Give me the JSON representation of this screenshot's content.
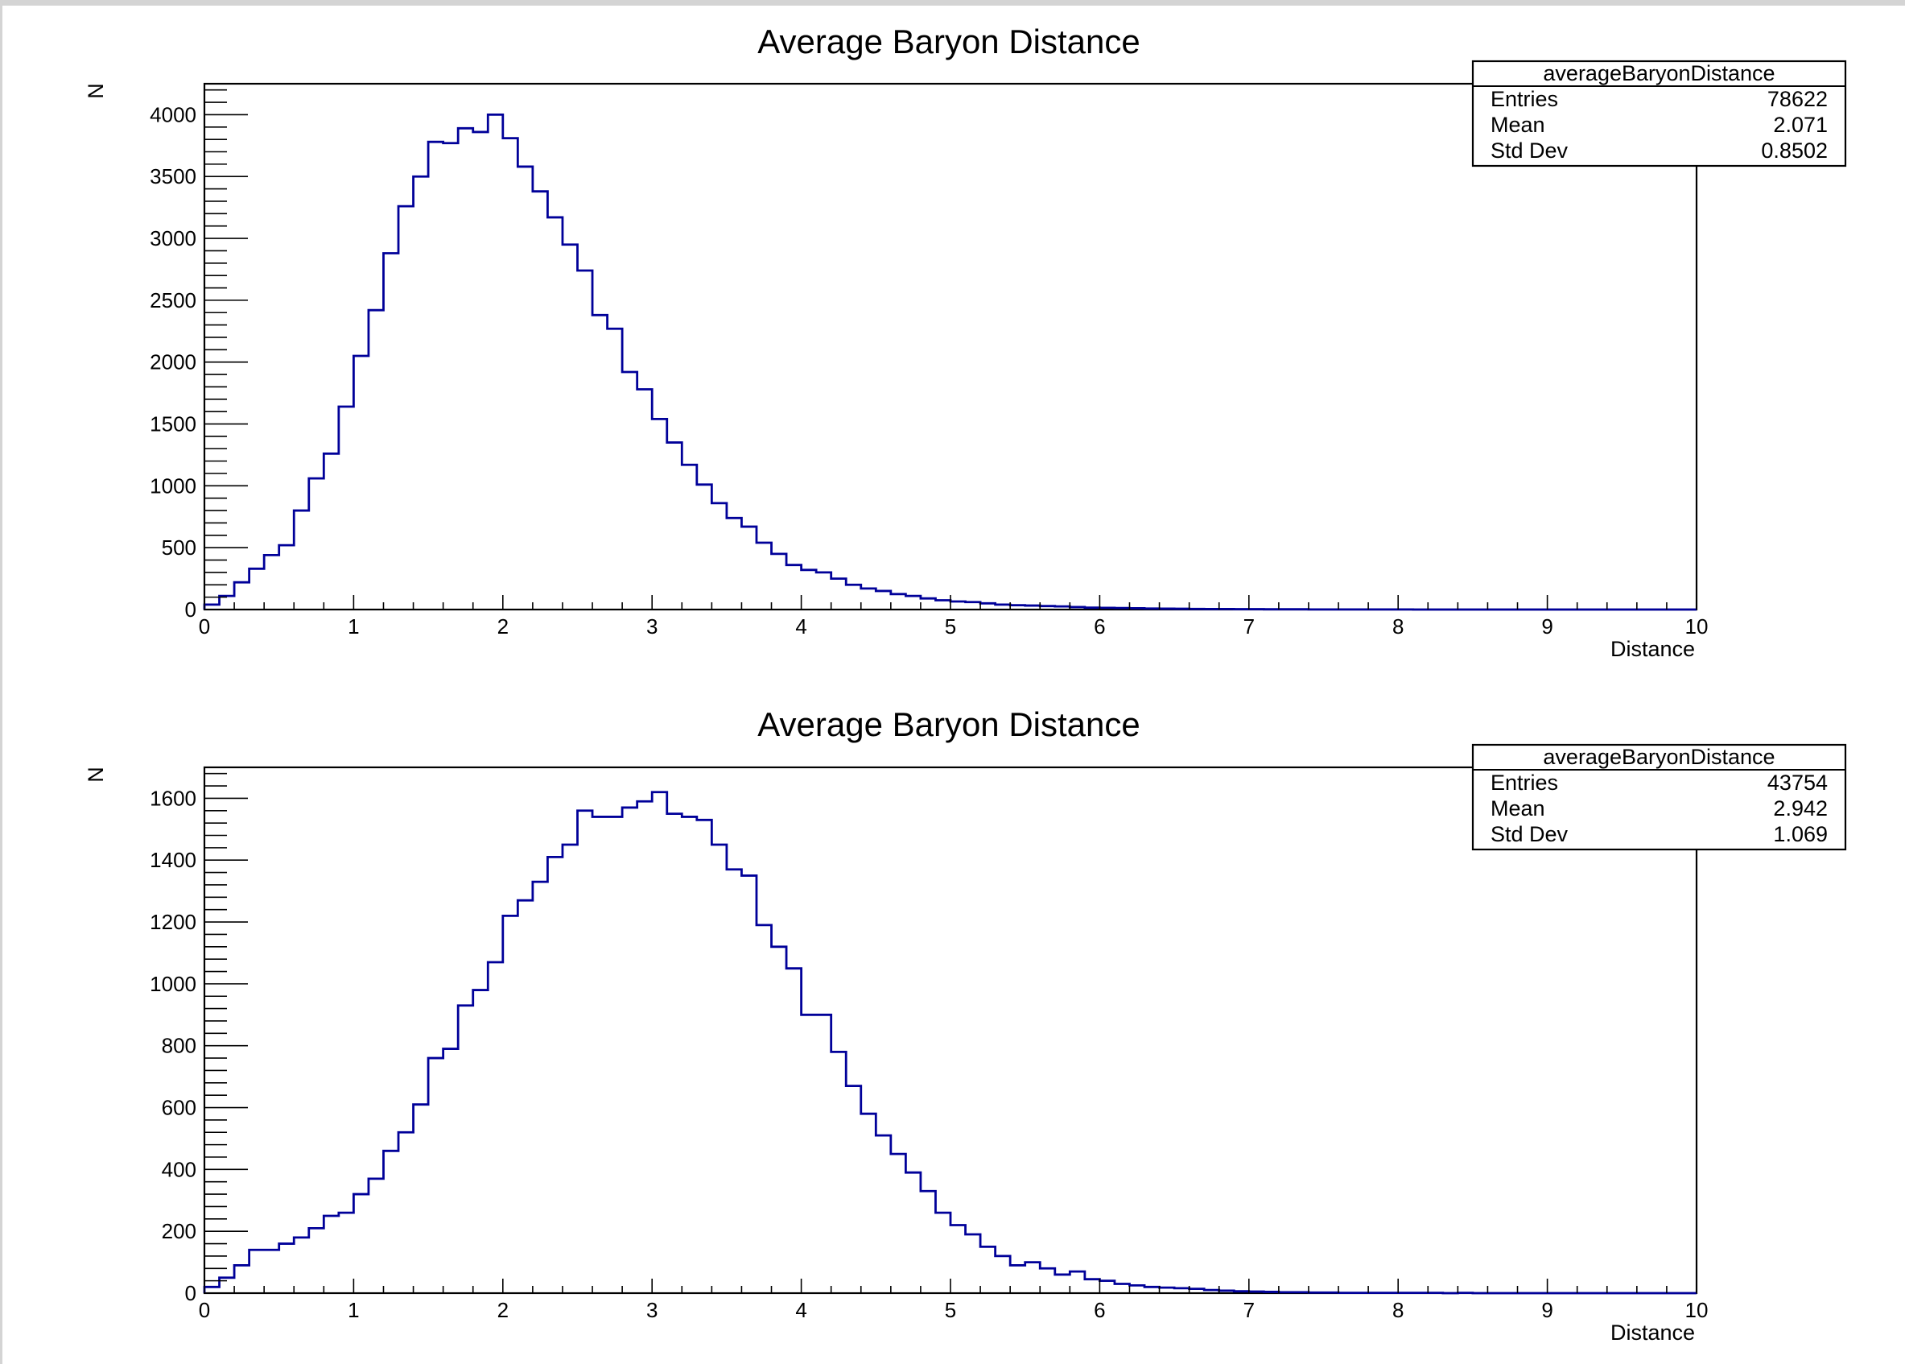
{
  "chart_data": [
    {
      "type": "histogram",
      "title": "Average Baryon Distance",
      "xlabel": "Distance",
      "ylabel": "N",
      "xlim": [
        0,
        10
      ],
      "ylim": [
        0,
        4250
      ],
      "x_ticks": [
        0,
        1,
        2,
        3,
        4,
        5,
        6,
        7,
        8,
        9,
        10
      ],
      "y_ticks": [
        0,
        500,
        1000,
        1500,
        2000,
        2500,
        3000,
        3500,
        4000
      ],
      "color": "#000099",
      "bin_width": 0.1,
      "series": [
        {
          "name": "averageBaryonDistance",
          "values": [
            40,
            110,
            220,
            330,
            440,
            520,
            800,
            1060,
            1260,
            1640,
            2050,
            2420,
            2880,
            3260,
            3500,
            3780,
            3770,
            3890,
            3860,
            4000,
            3810,
            3580,
            3380,
            3170,
            2950,
            2740,
            2380,
            2270,
            1920,
            1780,
            1540,
            1350,
            1170,
            1010,
            860,
            740,
            670,
            540,
            450,
            360,
            320,
            300,
            250,
            200,
            170,
            150,
            125,
            110,
            90,
            75,
            65,
            60,
            50,
            40,
            35,
            32,
            28,
            25,
            20,
            15,
            14,
            12,
            10,
            8,
            7,
            6,
            5,
            4,
            4,
            3,
            3,
            2,
            2,
            2,
            1,
            1,
            1,
            1,
            1,
            1,
            1,
            0,
            0,
            0,
            0,
            0,
            0,
            0,
            0,
            0,
            0,
            0,
            0,
            0,
            0,
            0,
            0,
            0,
            0,
            0
          ]
        }
      ],
      "stats": {
        "name": "averageBaryonDistance",
        "rows": [
          {
            "label": "Entries",
            "value": "78622"
          },
          {
            "label": "Mean",
            "value": "2.071"
          },
          {
            "label": "Std Dev",
            "value": "0.8502"
          }
        ]
      }
    },
    {
      "type": "histogram",
      "title": "Average Baryon Distance",
      "xlabel": "Distance",
      "ylabel": "N",
      "xlim": [
        0,
        10
      ],
      "ylim": [
        0,
        1700
      ],
      "x_ticks": [
        0,
        1,
        2,
        3,
        4,
        5,
        6,
        7,
        8,
        9,
        10
      ],
      "y_ticks": [
        0,
        200,
        400,
        600,
        800,
        1000,
        1200,
        1400,
        1600
      ],
      "color": "#000099",
      "bin_width": 0.1,
      "series": [
        {
          "name": "averageBaryonDistance",
          "values": [
            20,
            50,
            90,
            140,
            140,
            160,
            180,
            210,
            250,
            260,
            320,
            370,
            460,
            520,
            610,
            760,
            790,
            930,
            980,
            1070,
            1220,
            1270,
            1330,
            1410,
            1450,
            1560,
            1540,
            1540,
            1570,
            1590,
            1620,
            1550,
            1540,
            1530,
            1450,
            1370,
            1350,
            1190,
            1120,
            1050,
            900,
            900,
            780,
            670,
            580,
            510,
            450,
            390,
            330,
            260,
            220,
            190,
            150,
            120,
            90,
            100,
            80,
            60,
            70,
            45,
            40,
            30,
            25,
            20,
            18,
            16,
            14,
            10,
            8,
            6,
            5,
            4,
            3,
            3,
            2,
            2,
            1,
            1,
            1,
            1,
            1,
            1,
            1,
            0,
            1,
            0,
            0,
            0,
            0,
            0,
            0,
            0,
            0,
            0,
            0,
            0,
            0,
            0,
            0,
            0
          ]
        }
      ],
      "stats": {
        "name": "averageBaryonDistance",
        "rows": [
          {
            "label": "Entries",
            "value": "43754"
          },
          {
            "label": "Mean",
            "value": "2.942"
          },
          {
            "label": "Std Dev",
            "value": "1.069"
          }
        ]
      }
    }
  ]
}
